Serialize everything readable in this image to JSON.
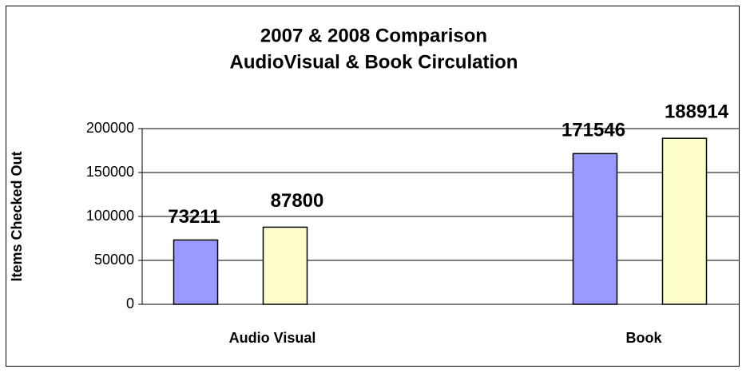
{
  "chart_data": {
    "type": "bar",
    "title": [
      "2007 & 2008 Comparison",
      "AudioVisual & Book Circulation"
    ],
    "y_label": "Items Checked Out",
    "categories": [
      "Audio Visual",
      "Book"
    ],
    "series": [
      {
        "color": "#9999ff",
        "values": [
          73211,
          171546
        ]
      },
      {
        "color": "#ffffcc",
        "values": [
          87800,
          188914
        ]
      }
    ],
    "ylim": [
      0,
      200000
    ],
    "yticks": [
      0,
      50000,
      100000,
      150000,
      200000
    ],
    "grid": true,
    "data_labels": true
  }
}
